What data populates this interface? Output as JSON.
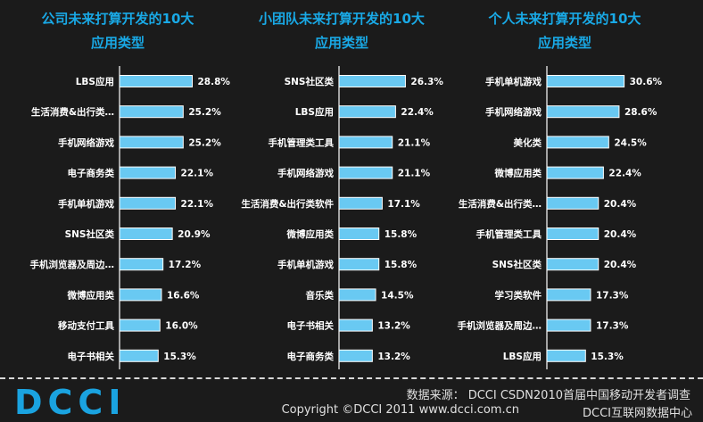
{
  "chart_data": [
    {
      "type": "bar",
      "orientation": "horizontal",
      "title_line1": "公司未来打算开发的10大",
      "title_line2": "应用类型",
      "categories": [
        "LBS应用",
        "生活消费&出行类…",
        "手机网络游戏",
        "电子商务类",
        "手机单机游戏",
        "SNS社区类",
        "手机浏览器及周边…",
        "微博应用类",
        "移动支付工具",
        "电子书相关"
      ],
      "values": [
        28.8,
        25.2,
        25.2,
        22.1,
        22.1,
        20.9,
        17.2,
        16.6,
        16.0,
        15.3
      ],
      "labels": [
        "28.8%",
        "25.2%",
        "25.2%",
        "22.1%",
        "22.1%",
        "20.9%",
        "17.2%",
        "16.6%",
        "16.0%",
        "15.3%"
      ],
      "xlim": [
        0,
        36
      ]
    },
    {
      "type": "bar",
      "orientation": "horizontal",
      "title_line1": "小团队未来打算开发的10大",
      "title_line2": "应用类型",
      "categories": [
        "SNS社区类",
        "LBS应用",
        "手机管理类工具",
        "手机网络游戏",
        "生活消费&出行类软件",
        "微博应用类",
        "手机单机游戏",
        "音乐类",
        "电子书相关",
        "电子商务类"
      ],
      "values": [
        26.3,
        22.4,
        21.1,
        21.1,
        17.1,
        15.8,
        15.8,
        14.5,
        13.2,
        13.2
      ],
      "labels": [
        "26.3%",
        "22.4%",
        "21.1%",
        "21.1%",
        "17.1%",
        "15.8%",
        "15.8%",
        "14.5%",
        "13.2%",
        "13.2%"
      ],
      "xlim": [
        0,
        36
      ]
    },
    {
      "type": "bar",
      "orientation": "horizontal",
      "title_line1": "个人未来打算开发的10大",
      "title_line2": "应用类型",
      "categories": [
        "手机单机游戏",
        "手机网络游戏",
        "美化类",
        "微博应用类",
        "生活消费&出行类…",
        "手机管理类工具",
        "SNS社区类",
        "学习类软件",
        "手机浏览器及周边…",
        "LBS应用"
      ],
      "values": [
        30.6,
        28.6,
        24.5,
        22.4,
        20.4,
        20.4,
        20.4,
        17.3,
        17.3,
        15.3
      ],
      "labels": [
        "30.6%",
        "28.6%",
        "24.5%",
        "22.4%",
        "20.4%",
        "20.4%",
        "20.4%",
        "17.3%",
        "17.3%",
        "15.3%"
      ],
      "xlim": [
        0,
        36
      ]
    }
  ],
  "footer": {
    "logo_text": "DCCI",
    "source": "数据来源： DCCI CSDN2010首届中国移动开发者调查",
    "copyright": "Copyright ©DCCI 2011 www.dcci.com.cn",
    "org": "DCCI互联网数据中心"
  },
  "colors": {
    "background": "#1b1b1b",
    "title": "#19a9e6",
    "bar": "#69c9f2",
    "logo": "#1aa3e0"
  }
}
